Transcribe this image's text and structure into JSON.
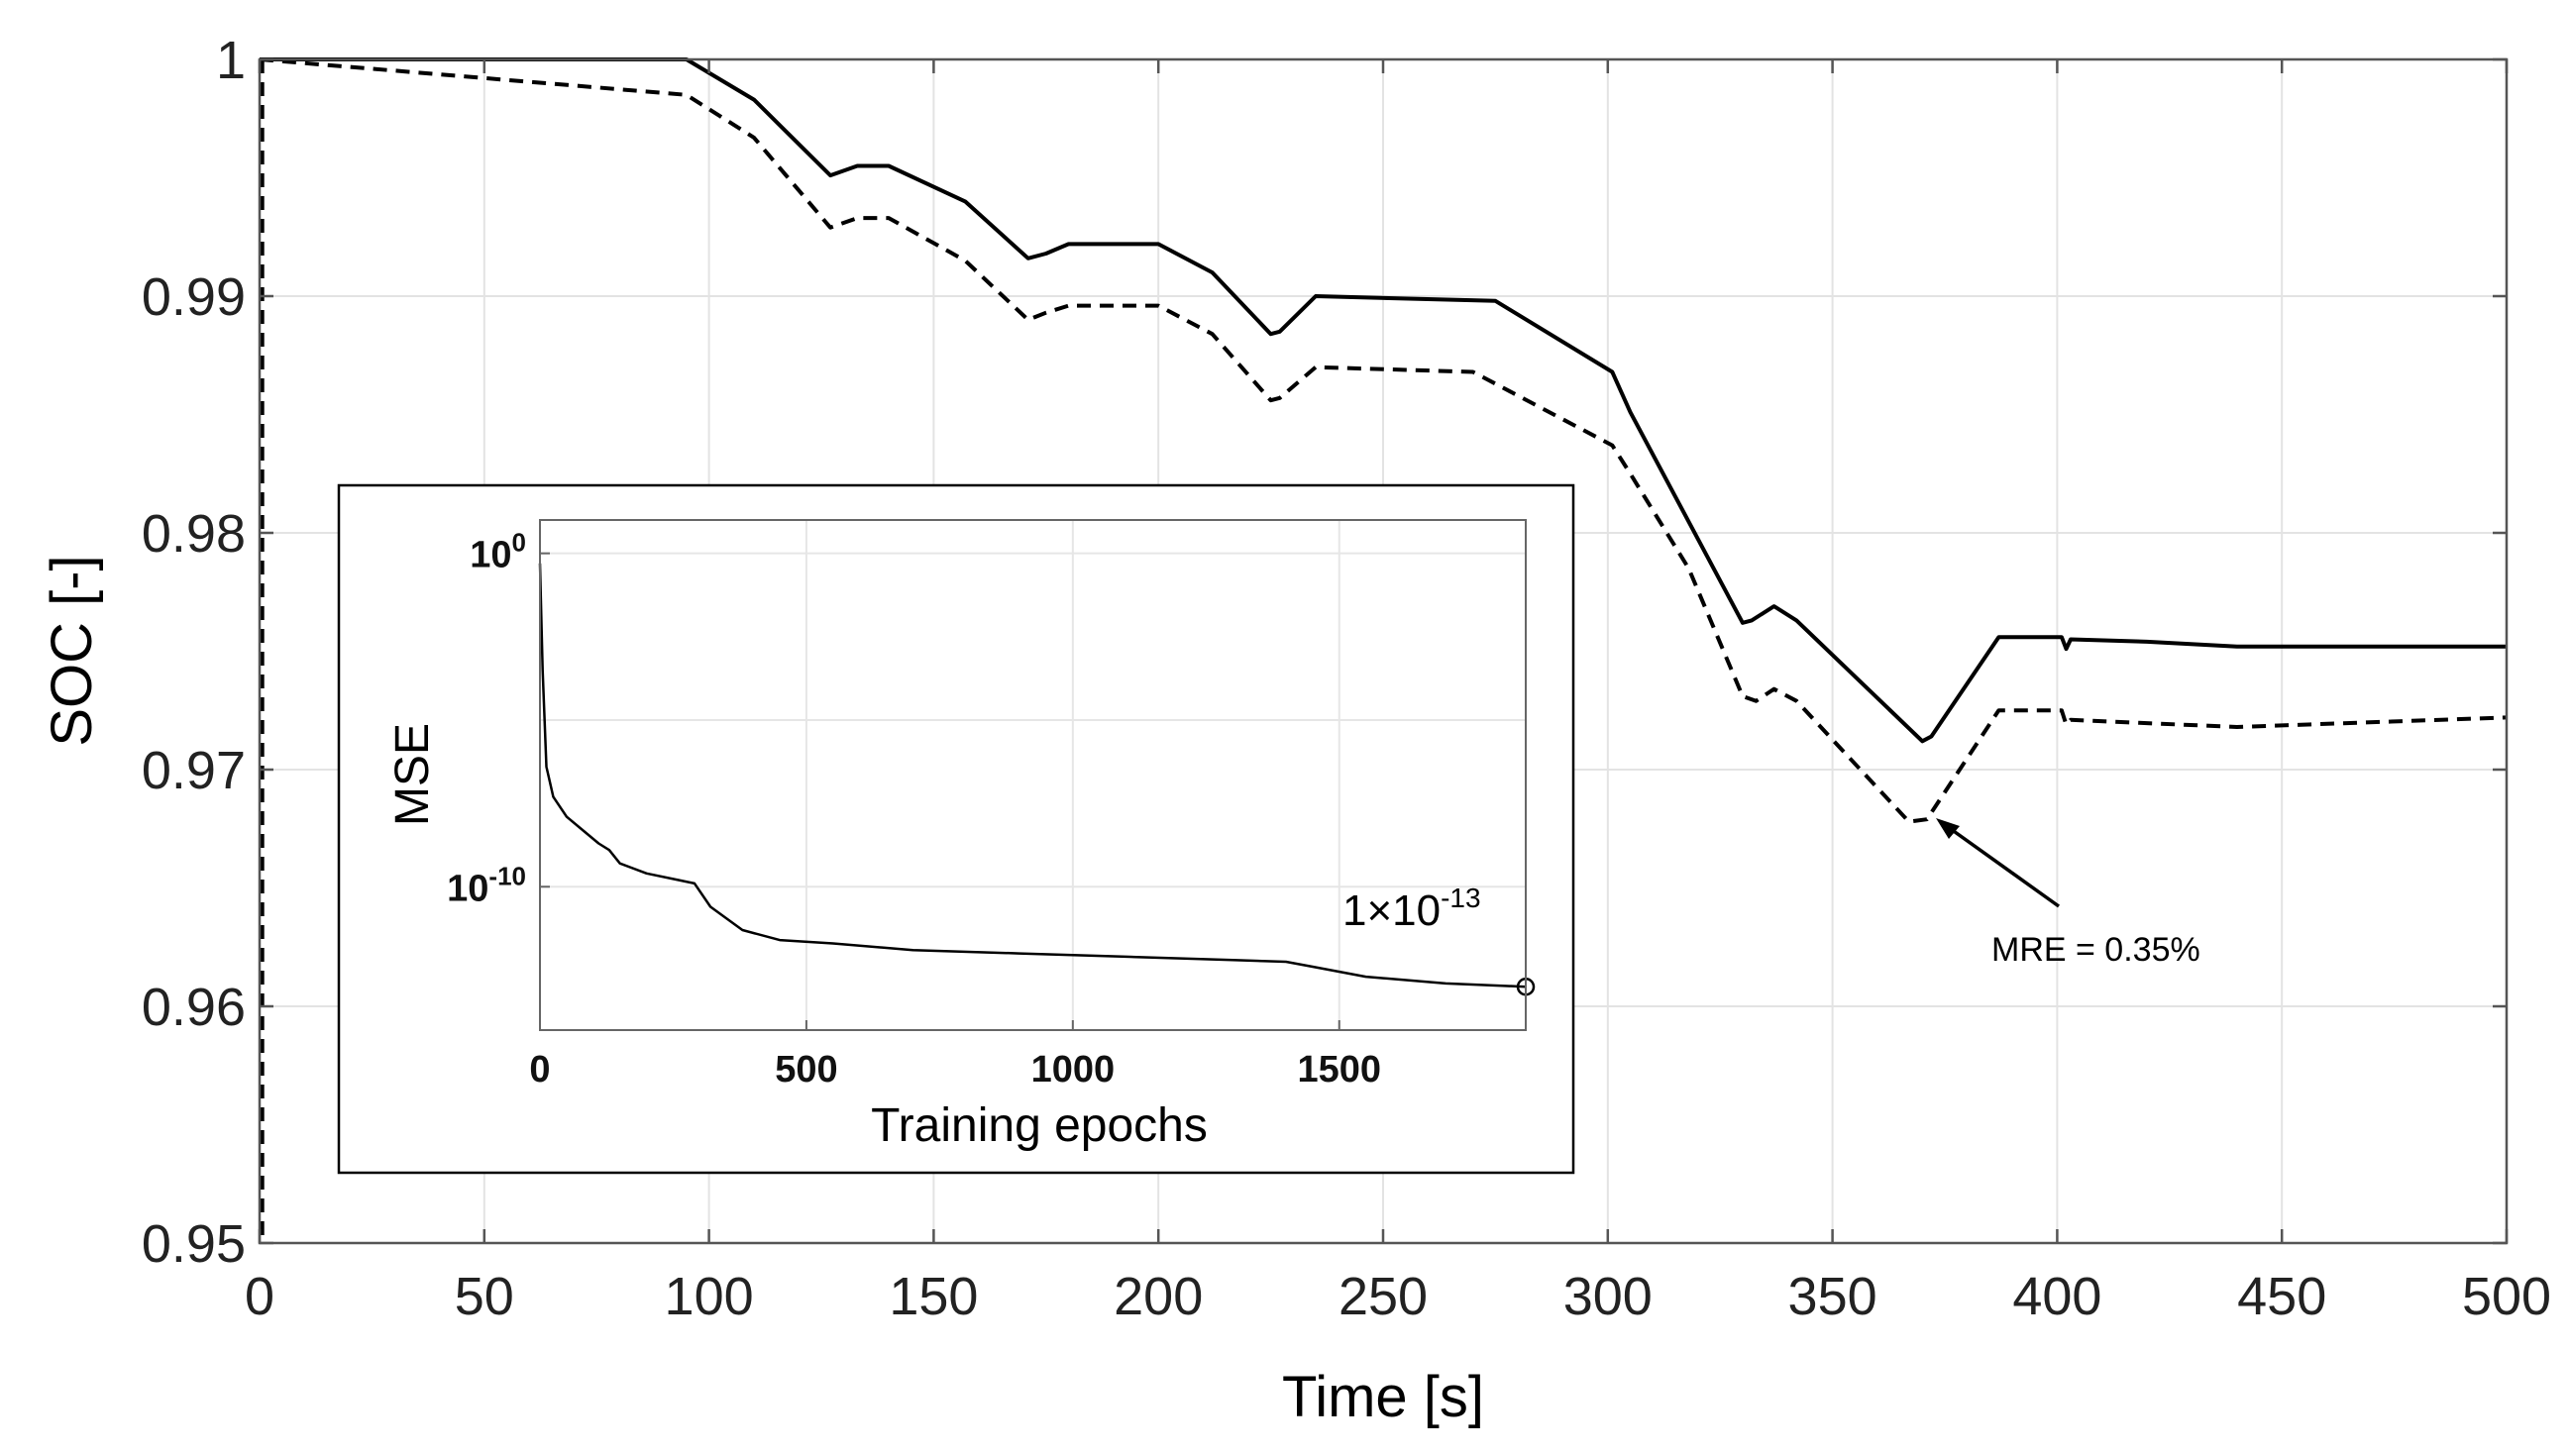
{
  "chart_data": [
    {
      "type": "line",
      "xlabel": "Time [s]",
      "ylabel": "SOC [-]",
      "xlim": [
        0,
        500
      ],
      "ylim": [
        0.95,
        1.0
      ],
      "xticks": [
        0,
        50,
        100,
        150,
        200,
        250,
        300,
        350,
        400,
        450,
        500
      ],
      "xtick_labels": [
        "0",
        "50",
        "100",
        "150",
        "200",
        "250",
        "300",
        "350",
        "400",
        "450",
        "500"
      ],
      "yticks": [
        0.95,
        0.96,
        0.97,
        0.98,
        0.99,
        1.0
      ],
      "ytick_labels": [
        "0.95",
        "0.96",
        "0.97",
        "0.98",
        "0.99",
        "1"
      ],
      "grid": true,
      "series": [
        {
          "name": "solid",
          "style": "solid",
          "color": "#000000",
          "x": [
            0,
            95,
            110,
            127,
            133,
            140,
            157,
            171,
            175,
            180,
            200,
            212,
            225,
            227,
            235,
            275,
            301,
            305,
            330,
            332,
            337,
            342,
            370,
            372,
            387,
            401,
            402,
            403,
            420,
            440,
            500
          ],
          "y": [
            1.0,
            1.0,
            0.9983,
            0.9951,
            0.9955,
            0.9955,
            0.994,
            0.9916,
            0.9918,
            0.9922,
            0.9922,
            0.991,
            0.9884,
            0.9885,
            0.99,
            0.9898,
            0.9868,
            0.9851,
            0.9762,
            0.9763,
            0.9769,
            0.9763,
            0.9712,
            0.9714,
            0.9756,
            0.9756,
            0.9751,
            0.9755,
            0.9754,
            0.9752,
            0.9752
          ]
        },
        {
          "name": "dashed",
          "style": "dashed",
          "color": "#000000",
          "x": [
            0,
            95,
            110,
            127,
            133,
            140,
            157,
            171,
            175,
            180,
            200,
            212,
            225,
            227,
            235,
            270,
            301,
            305,
            318,
            330,
            333,
            337,
            342,
            367,
            371,
            387,
            401,
            402,
            403,
            440,
            500
          ],
          "y": [
            1.0,
            0.9985,
            0.9967,
            0.9929,
            0.9933,
            0.9933,
            0.9915,
            0.989,
            0.9893,
            0.9896,
            0.9896,
            0.9884,
            0.9856,
            0.9857,
            0.987,
            0.9868,
            0.9837,
            0.9825,
            0.9785,
            0.9731,
            0.9729,
            0.9734,
            0.9729,
            0.9678,
            0.9679,
            0.9725,
            0.9725,
            0.9719,
            0.9721,
            0.9718,
            0.9722
          ]
        },
        {
          "name": "dashed-initial-drop",
          "style": "dashed",
          "color": "#000000",
          "x": [
            0.6,
            0.6
          ],
          "y": [
            1.0,
            0.95
          ]
        }
      ],
      "annotations": [
        {
          "text": "MRE = 0.35%",
          "arrow_to": {
            "x": 373,
            "y": 0.9678
          }
        }
      ]
    },
    {
      "type": "line",
      "inset": true,
      "xlabel": "Training epochs",
      "ylabel": "MSE",
      "xlim": [
        0,
        1850
      ],
      "yscale": "log",
      "ylim_log10": [
        -14.3,
        1.0
      ],
      "xticks": [
        0,
        500,
        1000,
        1500
      ],
      "xtick_labels": [
        "0",
        "500",
        "1000",
        "1500"
      ],
      "ytick_labels": [
        {
          "base": "10",
          "exp": "0",
          "log10": 0
        },
        {
          "base": "10",
          "exp": "-10",
          "log10": -10
        }
      ],
      "grid": true,
      "series": [
        {
          "name": "MSE",
          "style": "solid",
          "color": "#000000",
          "x": [
            0,
            5,
            12,
            25,
            50,
            80,
            110,
            130,
            150,
            200,
            260,
            290,
            320,
            380,
            450,
            550,
            700,
            900,
            1100,
            1300,
            1400,
            1450,
            1550,
            1700,
            1850
          ],
          "log10_y": [
            -0.3,
            -3.5,
            -6.4,
            -7.3,
            -7.9,
            -8.3,
            -8.7,
            -8.9,
            -9.3,
            -9.6,
            -9.8,
            -9.9,
            -10.6,
            -11.3,
            -11.6,
            -11.7,
            -11.9,
            -12.0,
            -12.1,
            -12.2,
            -12.25,
            -12.4,
            -12.7,
            -12.9,
            -13.0
          ]
        }
      ],
      "final_marker": {
        "x": 1850,
        "log10_y": -13
      },
      "final_label": {
        "base": "1×10",
        "exp": "-13"
      }
    }
  ]
}
